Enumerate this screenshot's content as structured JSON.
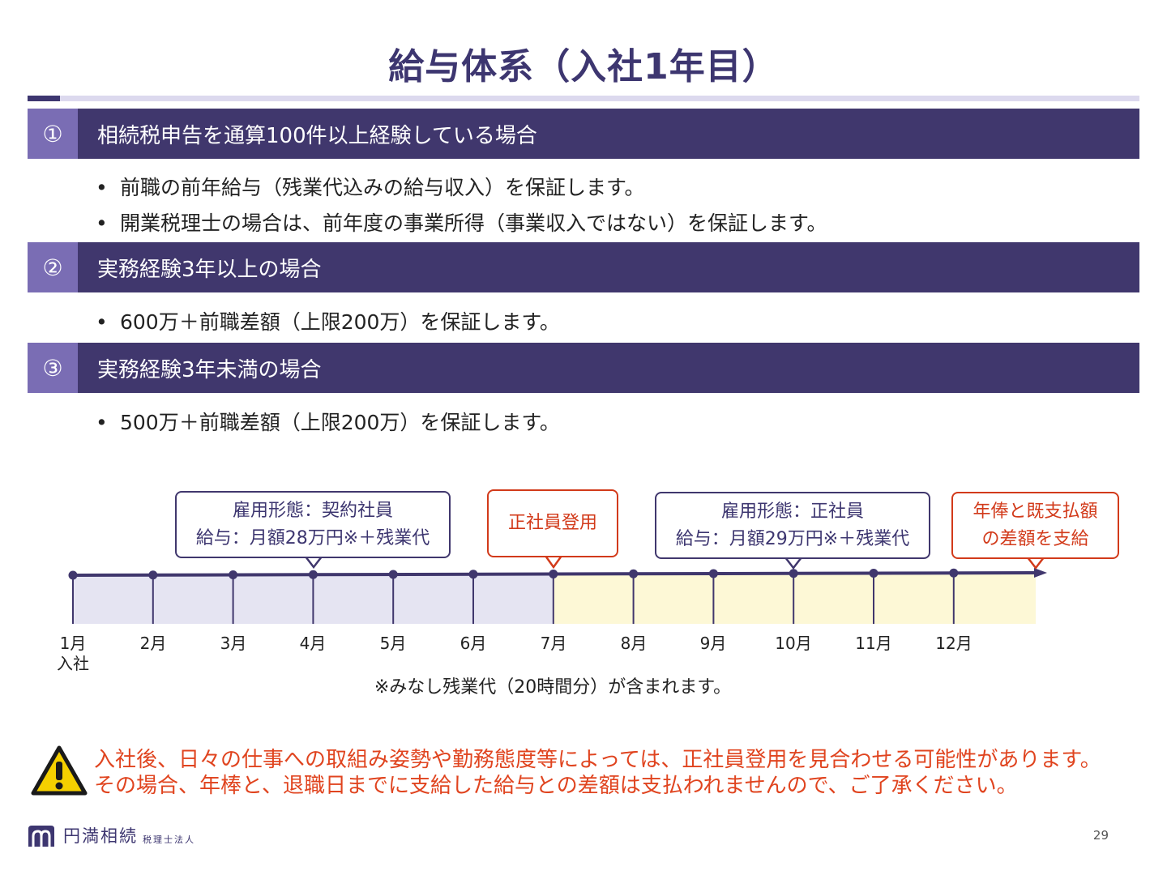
{
  "title": "給与体系（入社1年目）",
  "sections": [
    {
      "number": "①",
      "heading": "相続税申告を通算100件以上経験している場合",
      "bullets": [
        "前職の前年給与（残業代込みの給与収入）を保証します。",
        "開業税理士の場合は、前年度の事業所得（事業収入ではない）を保証します。"
      ]
    },
    {
      "number": "②",
      "heading": "実務経験3年以上の場合",
      "bullets": [
        "600万＋前職差額（上限200万）を保証します。"
      ]
    },
    {
      "number": "③",
      "heading": "実務経験3年未満の場合",
      "bullets": [
        "500万＋前職差額（上限200万）を保証します。"
      ]
    }
  ],
  "timeline": {
    "months": [
      "1月",
      "2月",
      "3月",
      "4月",
      "5月",
      "6月",
      "7月",
      "8月",
      "9月",
      "10月",
      "11月",
      "12月"
    ],
    "first_month_sub": "入社",
    "callouts": {
      "contract": {
        "line1": "雇用形態：契約社員",
        "line2": "給与：月額28万円※＋残業代"
      },
      "promotion": {
        "line1": "正社員登用"
      },
      "fulltime": {
        "line1": "雇用形態：正社員",
        "line2": "給与：月額29万円※＋残業代"
      },
      "settlement": {
        "line1": "年俸と既支払額",
        "line2": "の差額を支給"
      }
    },
    "note": "※みなし残業代（20時間分）が含まれます。",
    "colors": {
      "contract_period": "#e5e4f2",
      "fulltime_period": "#fdf8d6",
      "line": "#40376d",
      "highlight": "#d23a1a"
    }
  },
  "warning": {
    "icon": "warning-icon",
    "line1": "入社後、日々の仕事への取組み姿勢や勤務態度等によっては、正社員登用を見合わせる可能性があります。",
    "line2": "その場合、年棒と、退職日までに支給した給与との差額は支払われませんので、ご了承ください。"
  },
  "footer": {
    "logo_name": "円満相続",
    "logo_sub": "税理士法人",
    "page_number": "29"
  }
}
